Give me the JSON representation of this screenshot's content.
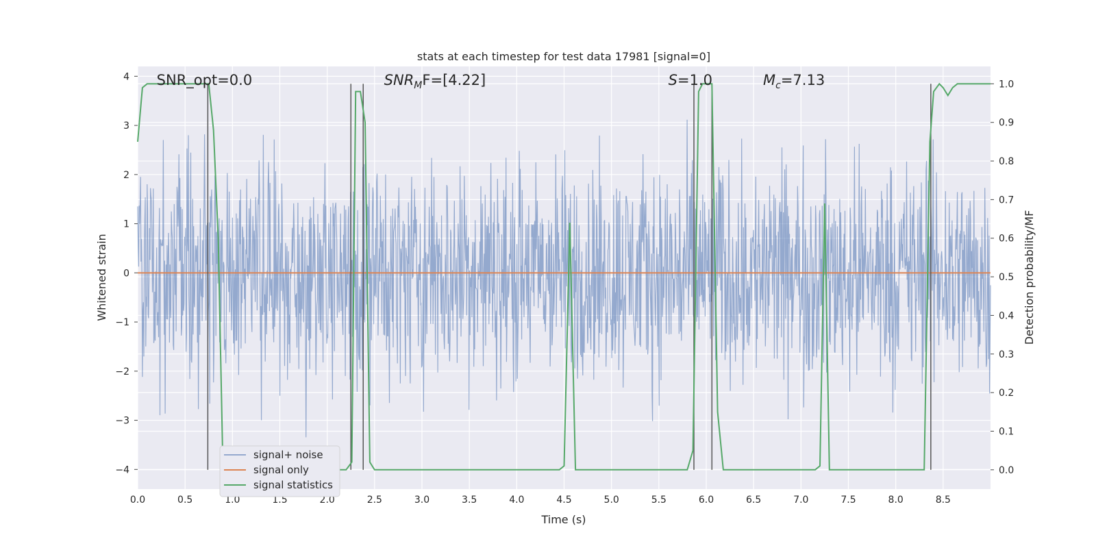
{
  "chart_data": {
    "type": "line",
    "title": "stats at each timestep for test data 17981 [signal=0]",
    "xlabel": "Time (s)",
    "ylabel": "Whitened strain",
    "y2label": "Detection probability/MF",
    "xlim": [
      0,
      9.0
    ],
    "ylim": [
      -4.4,
      4.2
    ],
    "y2lim": [
      -0.05,
      1.045
    ],
    "xticks": [
      "0.0",
      "0.5",
      "1.0",
      "1.5",
      "2.0",
      "2.5",
      "3.0",
      "3.5",
      "4.0",
      "4.5",
      "5.0",
      "5.5",
      "6.0",
      "6.5",
      "7.0",
      "7.5",
      "8.0",
      "8.5"
    ],
    "yticks": [
      "4",
      "3",
      "2",
      "1",
      "0",
      "−1",
      "−2",
      "−3",
      "−4"
    ],
    "y2ticks": [
      "1.0",
      "0.9",
      "0.8",
      "0.7",
      "0.6",
      "0.5",
      "0.4",
      "0.3",
      "0.2",
      "0.1",
      "0.0"
    ],
    "grid": true,
    "legend_position": "lower-left",
    "annotations": [
      {
        "text": "SNR_opt=0.0",
        "x": 0.2
      },
      {
        "text": "SNR",
        "sub": "M",
        "suffix": "F=[4.22]",
        "x": 2.6
      },
      {
        "text": "S",
        "suffix": "=1.0",
        "x": 5.6
      },
      {
        "text": "M",
        "sub": "c",
        "suffix": "=7.13",
        "x": 6.6
      }
    ],
    "series": [
      {
        "name": "signal+ noise",
        "color": "#4c72b0",
        "opacity": 0.55,
        "t_start": 0.0,
        "t_end": 9.0,
        "envelope": {
          "typical_max": 2.2,
          "typical_min": -2.2,
          "peak_max": 3.9,
          "peak_min": -4.0
        }
      },
      {
        "name": "signal only",
        "color": "#dd8452",
        "x": [
          0.0,
          9.0
        ],
        "y": [
          0.0,
          0.0
        ]
      },
      {
        "name": "signal statistics",
        "color": "#55a868",
        "axis": "right",
        "x": [
          0.0,
          0.05,
          0.1,
          0.15,
          0.7,
          0.75,
          0.8,
          0.85,
          0.9,
          2.2,
          2.26,
          2.3,
          2.35,
          2.4,
          2.45,
          2.5,
          4.45,
          4.5,
          4.56,
          4.62,
          4.68,
          5.8,
          5.86,
          5.92,
          5.96,
          6.06,
          6.12,
          6.18,
          6.24,
          7.15,
          7.2,
          7.25,
          7.3,
          7.35,
          8.3,
          8.36,
          8.4,
          8.46,
          8.5,
          8.55,
          8.6,
          8.65,
          8.7,
          9.0
        ],
        "y": [
          0.85,
          0.99,
          1.0,
          1.0,
          1.0,
          1.0,
          0.88,
          0.6,
          0.0,
          0.0,
          0.02,
          0.98,
          0.98,
          0.9,
          0.02,
          0.0,
          0.0,
          0.01,
          0.64,
          0.0,
          0.0,
          0.0,
          0.05,
          0.98,
          1.0,
          1.0,
          0.15,
          0.0,
          0.0,
          0.0,
          0.01,
          0.69,
          0.0,
          0.0,
          0.0,
          0.85,
          0.98,
          1.0,
          0.99,
          0.97,
          0.99,
          1.0,
          1.0,
          1.0
        ]
      }
    ],
    "vlines": [
      0.74,
      2.25,
      2.38,
      5.87,
      6.06,
      8.37
    ]
  }
}
